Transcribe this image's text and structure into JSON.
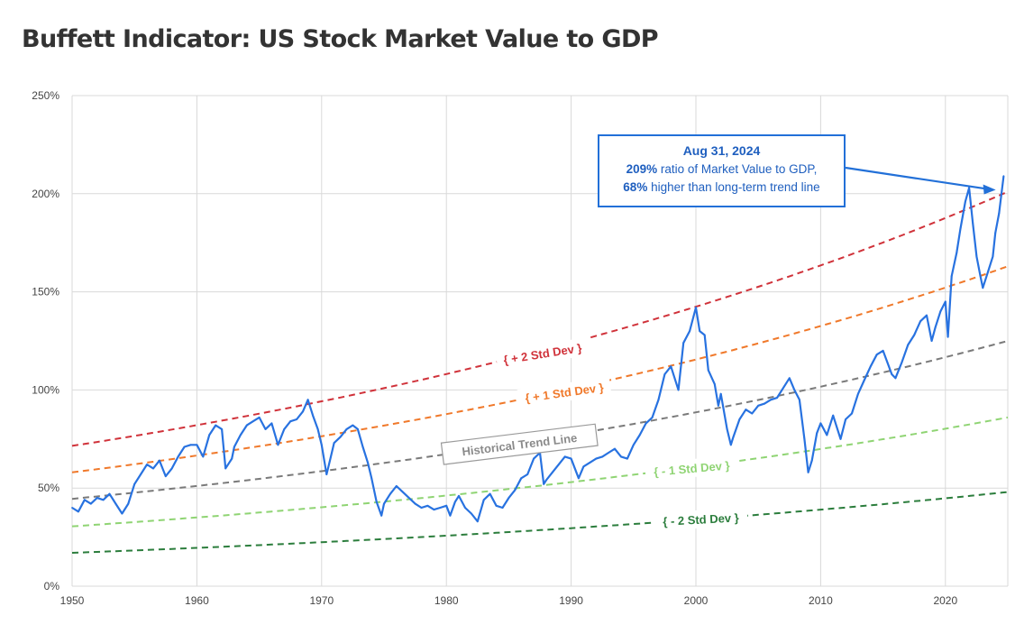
{
  "title": "Buffett Indicator: US Stock Market Value to GDP",
  "annotation": {
    "date": "Aug 31, 2024",
    "line1_bold": "209%",
    "line1_rest": " ratio of Market Value to GDP,",
    "line2_bold": "68%",
    "line2_rest": " higher than long-term trend line"
  },
  "colors": {
    "series": "#2872e0",
    "plus2": "#d0323a",
    "plus1": "#f0792b",
    "trend": "#7a7a7a",
    "minus1": "#8fd473",
    "minus2": "#2b7d3c",
    "grid": "#d9d9d9",
    "axis_text": "#444444",
    "annotation": "#1f5fbf"
  },
  "chart_data": {
    "type": "line",
    "title": "Buffett Indicator: US Stock Market Value to GDP",
    "xlim": [
      1950,
      2025
    ],
    "ylim": [
      0,
      250
    ],
    "x_ticks": [
      "1950",
      "1960",
      "1970",
      "1980",
      "1990",
      "2000",
      "2010",
      "2020"
    ],
    "y_ticks": [
      "0%",
      "50%",
      "100%",
      "150%",
      "200%",
      "250%"
    ],
    "grid": true,
    "series": [
      {
        "values": [
          [
            1950,
            40
          ],
          [
            1950.5,
            38
          ],
          [
            1951,
            44
          ],
          [
            1951.5,
            42
          ],
          [
            1952,
            45
          ],
          [
            1952.5,
            44
          ],
          [
            1953,
            47
          ],
          [
            1953.5,
            42
          ],
          [
            1954,
            37
          ],
          [
            1954.5,
            42
          ],
          [
            1955,
            52
          ],
          [
            1955.5,
            57
          ],
          [
            1956,
            62
          ],
          [
            1956.5,
            60
          ],
          [
            1957,
            64
          ],
          [
            1957.5,
            56
          ],
          [
            1958,
            60
          ],
          [
            1958.5,
            66
          ],
          [
            1959,
            71
          ],
          [
            1959.5,
            72
          ],
          [
            1960,
            72
          ],
          [
            1960.5,
            66
          ],
          [
            1961,
            77
          ],
          [
            1961.5,
            82
          ],
          [
            1962,
            80
          ],
          [
            1962.3,
            60
          ],
          [
            1962.8,
            65
          ],
          [
            1963,
            71
          ],
          [
            1963.5,
            77
          ],
          [
            1964,
            82
          ],
          [
            1964.5,
            84
          ],
          [
            1965,
            86
          ],
          [
            1965.5,
            80
          ],
          [
            1966,
            83
          ],
          [
            1966.5,
            72
          ],
          [
            1967,
            80
          ],
          [
            1967.5,
            84
          ],
          [
            1968,
            85
          ],
          [
            1968.5,
            89
          ],
          [
            1968.9,
            95
          ],
          [
            1969.3,
            87
          ],
          [
            1969.7,
            80
          ],
          [
            1970,
            72
          ],
          [
            1970.4,
            57
          ],
          [
            1970.7,
            65
          ],
          [
            1971,
            73
          ],
          [
            1971.5,
            76
          ],
          [
            1972,
            80
          ],
          [
            1972.5,
            82
          ],
          [
            1972.9,
            80
          ],
          [
            1973.3,
            71
          ],
          [
            1973.7,
            63
          ],
          [
            1974,
            55
          ],
          [
            1974.4,
            43
          ],
          [
            1974.8,
            36
          ],
          [
            1975,
            42
          ],
          [
            1975.5,
            47
          ],
          [
            1976,
            51
          ],
          [
            1976.5,
            48
          ],
          [
            1977,
            45
          ],
          [
            1977.5,
            42
          ],
          [
            1978,
            40
          ],
          [
            1978.5,
            41
          ],
          [
            1979,
            39
          ],
          [
            1979.5,
            40
          ],
          [
            1980,
            41
          ],
          [
            1980.3,
            36
          ],
          [
            1980.7,
            43
          ],
          [
            1981,
            46
          ],
          [
            1981.5,
            40
          ],
          [
            1982,
            37
          ],
          [
            1982.5,
            33
          ],
          [
            1983,
            44
          ],
          [
            1983.5,
            47
          ],
          [
            1984,
            41
          ],
          [
            1984.5,
            40
          ],
          [
            1985,
            45
          ],
          [
            1985.5,
            49
          ],
          [
            1986,
            55
          ],
          [
            1986.5,
            57
          ],
          [
            1987,
            65
          ],
          [
            1987.5,
            68
          ],
          [
            1987.8,
            52
          ],
          [
            1988,
            54
          ],
          [
            1988.5,
            58
          ],
          [
            1989,
            62
          ],
          [
            1989.5,
            66
          ],
          [
            1990,
            65
          ],
          [
            1990.6,
            55
          ],
          [
            1991,
            61
          ],
          [
            1991.5,
            63
          ],
          [
            1992,
            65
          ],
          [
            1992.5,
            66
          ],
          [
            1993,
            68
          ],
          [
            1993.5,
            70
          ],
          [
            1994,
            66
          ],
          [
            1994.5,
            65
          ],
          [
            1995,
            72
          ],
          [
            1995.5,
            77
          ],
          [
            1996,
            83
          ],
          [
            1996.5,
            86
          ],
          [
            1997,
            95
          ],
          [
            1997.5,
            108
          ],
          [
            1998,
            112
          ],
          [
            1998.6,
            100
          ],
          [
            1999,
            124
          ],
          [
            1999.5,
            130
          ],
          [
            2000,
            142
          ],
          [
            2000.3,
            130
          ],
          [
            2000.7,
            128
          ],
          [
            2001,
            110
          ],
          [
            2001.5,
            103
          ],
          [
            2001.8,
            92
          ],
          [
            2002,
            98
          ],
          [
            2002.5,
            80
          ],
          [
            2002.8,
            72
          ],
          [
            2003,
            76
          ],
          [
            2003.5,
            85
          ],
          [
            2004,
            90
          ],
          [
            2004.5,
            88
          ],
          [
            2005,
            92
          ],
          [
            2005.5,
            93
          ],
          [
            2006,
            95
          ],
          [
            2006.5,
            96
          ],
          [
            2007,
            101
          ],
          [
            2007.5,
            106
          ],
          [
            2007.9,
            100
          ],
          [
            2008.3,
            95
          ],
          [
            2008.7,
            75
          ],
          [
            2009,
            58
          ],
          [
            2009.3,
            64
          ],
          [
            2009.7,
            78
          ],
          [
            2010,
            83
          ],
          [
            2010.5,
            77
          ],
          [
            2011,
            87
          ],
          [
            2011.6,
            75
          ],
          [
            2012,
            85
          ],
          [
            2012.5,
            88
          ],
          [
            2013,
            98
          ],
          [
            2013.5,
            105
          ],
          [
            2014,
            112
          ],
          [
            2014.5,
            118
          ],
          [
            2015,
            120
          ],
          [
            2015.7,
            108
          ],
          [
            2016,
            106
          ],
          [
            2016.5,
            114
          ],
          [
            2017,
            123
          ],
          [
            2017.5,
            128
          ],
          [
            2018,
            135
          ],
          [
            2018.5,
            138
          ],
          [
            2018.9,
            125
          ],
          [
            2019.2,
            132
          ],
          [
            2019.6,
            140
          ],
          [
            2020,
            145
          ],
          [
            2020.2,
            127
          ],
          [
            2020.5,
            158
          ],
          [
            2020.9,
            170
          ],
          [
            2021.2,
            182
          ],
          [
            2021.6,
            196
          ],
          [
            2021.9,
            203
          ],
          [
            2022.2,
            185
          ],
          [
            2022.5,
            168
          ],
          [
            2022.8,
            158
          ],
          [
            2023,
            152
          ],
          [
            2023.4,
            160
          ],
          [
            2023.8,
            168
          ],
          [
            2024,
            180
          ],
          [
            2024.3,
            190
          ],
          [
            2024.67,
            209
          ]
        ]
      }
    ],
    "bands": [
      {
        "label": "+ 2 Std Dev",
        "start": 71.5,
        "end": 201
      },
      {
        "label": "+ 1 Std Dev",
        "start": 58,
        "end": 163
      },
      {
        "label": "Historical Trend Line",
        "start": 44.5,
        "end": 125
      },
      {
        "label": "- 1 Std Dev",
        "start": 30.5,
        "end": 86
      },
      {
        "label": "- 2 Std Dev",
        "start": 17,
        "end": 48
      }
    ]
  }
}
